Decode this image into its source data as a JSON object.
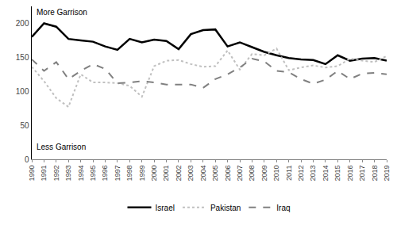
{
  "chart_data": {
    "type": "line",
    "categories": [
      "1990",
      "1991",
      "1992",
      "1993",
      "1994",
      "1995",
      "1996",
      "1997",
      "1998",
      "1999",
      "2000",
      "2001",
      "2002",
      "2003",
      "2004",
      "2005",
      "2006",
      "2007",
      "2008",
      "2009",
      "2010",
      "2011",
      "2012",
      "2013",
      "2014",
      "2015",
      "2016",
      "2017",
      "2018",
      "2019"
    ],
    "series": [
      {
        "name": "Israel",
        "color": "#000000",
        "line_style": "solid",
        "values": [
          180,
          200,
          195,
          177,
          175,
          173,
          166,
          161,
          177,
          172,
          176,
          174,
          162,
          184,
          190,
          191,
          166,
          172,
          165,
          158,
          153,
          149,
          147,
          146,
          140,
          153,
          145,
          148,
          149,
          145
        ]
      },
      {
        "name": "Pakistan",
        "color": "#c0c0c0",
        "line_style": "dot",
        "values": [
          136,
          115,
          90,
          77,
          125,
          113,
          113,
          112,
          108,
          92,
          137,
          145,
          146,
          140,
          136,
          137,
          160,
          132,
          155,
          153,
          163,
          131,
          135,
          138,
          135,
          137,
          148,
          145,
          143,
          152
        ]
      },
      {
        "name": "Iraq",
        "color": "#808080",
        "line_style": "dash",
        "values": [
          147,
          130,
          143,
          118,
          130,
          140,
          133,
          112,
          113,
          115,
          113,
          110,
          110,
          110,
          105,
          118,
          125,
          135,
          148,
          144,
          130,
          128,
          118,
          111,
          117,
          130,
          118,
          126,
          127,
          125
        ]
      }
    ],
    "ylim": [
      0,
      225
    ],
    "yticks": [
      0,
      50,
      100,
      150,
      200
    ],
    "grid": false,
    "legend": "bottom",
    "annotations": [
      "More Garrison",
      "Less Garrison"
    ]
  }
}
